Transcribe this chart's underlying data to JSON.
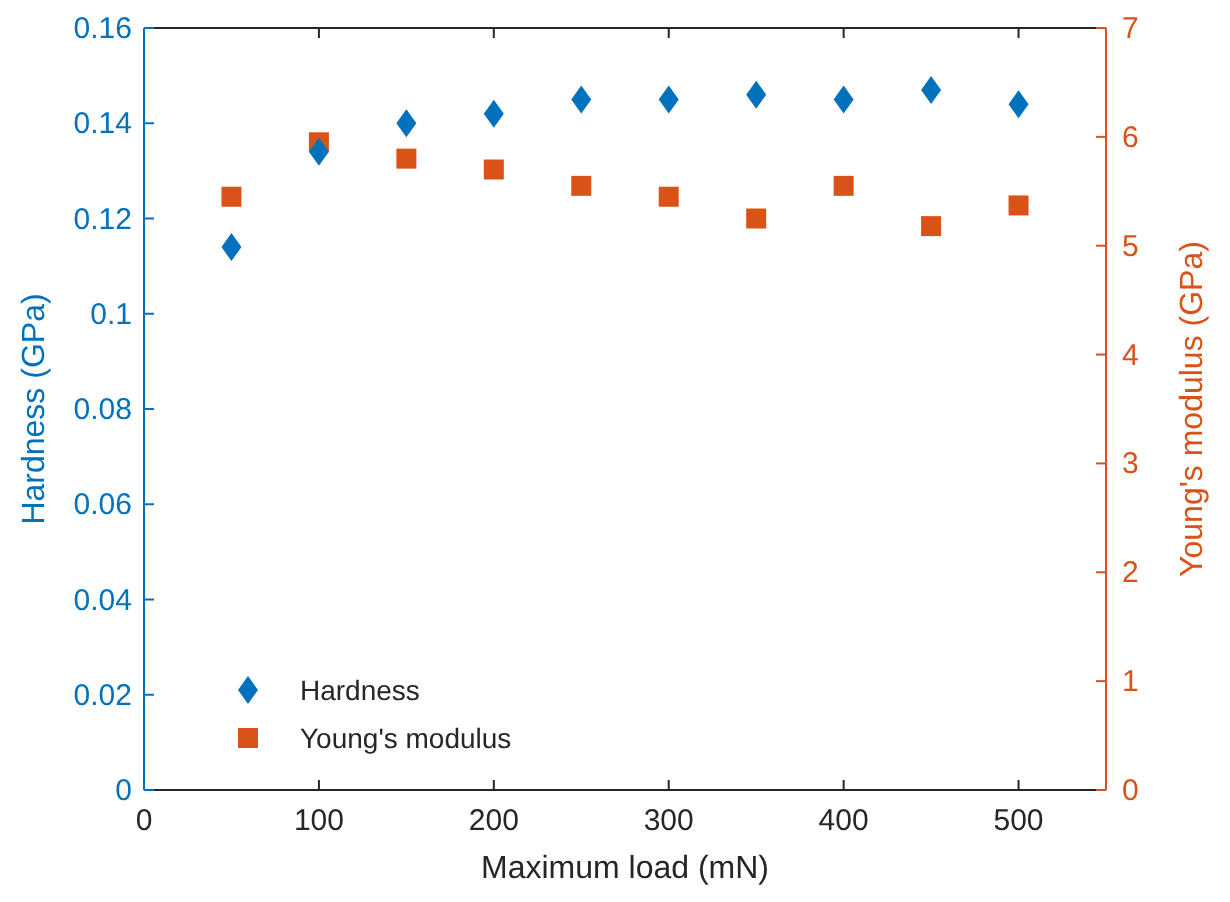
{
  "chart_data": {
    "type": "scatter",
    "xlabel": "Maximum load (mN)",
    "ylabel": "Hardness (GPa)",
    "y2label": "Young's modulus (GPa)",
    "x": [
      50,
      100,
      150,
      200,
      250,
      300,
      350,
      400,
      450,
      500
    ],
    "series": [
      {
        "name": "Hardness",
        "color": "#0072bd",
        "marker": "diamond",
        "values": [
          0.114,
          0.134,
          0.14,
          0.142,
          0.145,
          0.145,
          0.146,
          0.145,
          0.147,
          0.144
        ]
      },
      {
        "name": "Young's modulus",
        "color": "#d95319",
        "marker": "square",
        "axis": "y2",
        "values": [
          5.45,
          5.95,
          5.8,
          5.7,
          5.55,
          5.45,
          5.25,
          5.55,
          5.18,
          5.37
        ]
      }
    ],
    "xlim": [
      0,
      550
    ],
    "xticks": [
      0,
      100,
      200,
      300,
      400,
      500
    ],
    "ylim": [
      0,
      0.16
    ],
    "yticks": [
      0,
      0.02,
      0.04,
      0.06,
      0.08,
      0.1,
      0.12,
      0.14,
      0.16
    ],
    "y2lim": [
      0,
      7
    ],
    "y2ticks": [
      0,
      1,
      2,
      3,
      4,
      5,
      6,
      7
    ],
    "grid": false,
    "legend": "bottom left"
  }
}
